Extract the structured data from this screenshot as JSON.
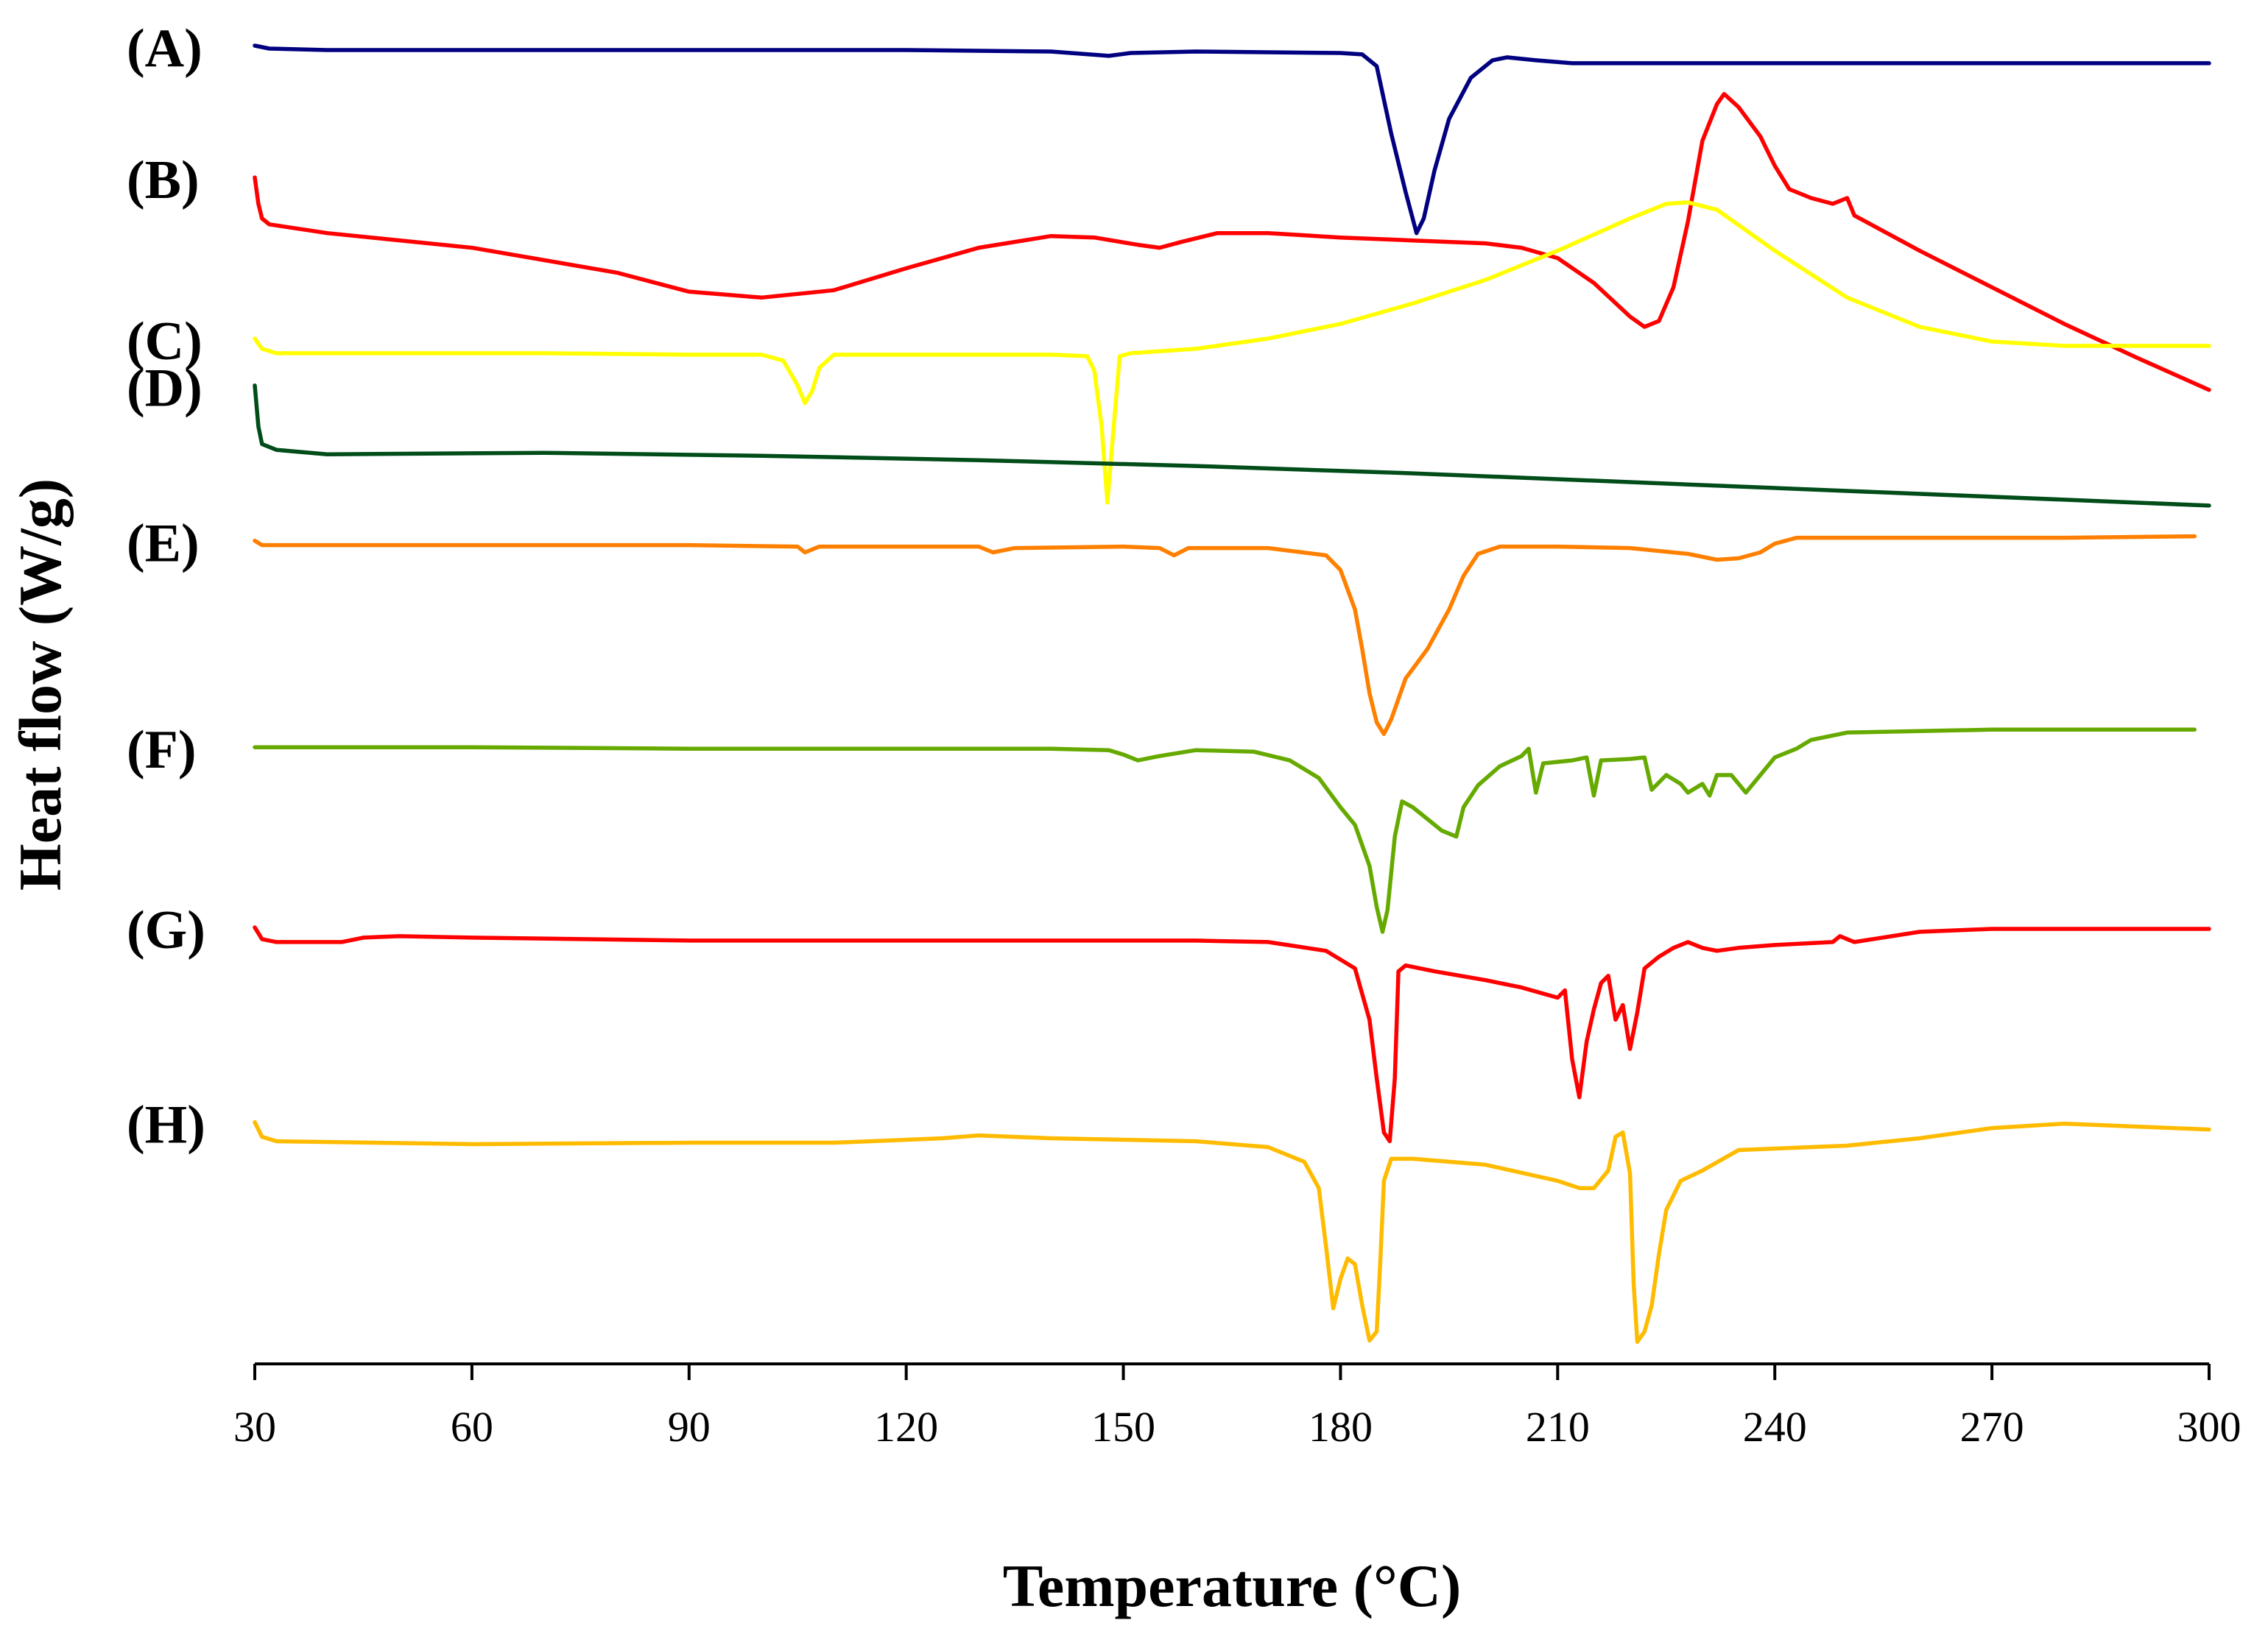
{
  "chart_data": {
    "type": "line",
    "title": "",
    "xlabel": "Temperature (°C)",
    "ylabel": "Heat flow (W/g)",
    "xlim": [
      30,
      300
    ],
    "xticks": [
      30,
      60,
      90,
      120,
      150,
      180,
      210,
      240,
      270,
      300
    ],
    "yaxis_units": "offset heat-flow units (stacked curves, 0 = top of plot, 900 = baseline)",
    "series": [
      {
        "name": "(A)",
        "color": "#000080",
        "points": [
          [
            30,
            0
          ],
          [
            32,
            2
          ],
          [
            40,
            3
          ],
          [
            60,
            3
          ],
          [
            90,
            3
          ],
          [
            120,
            3
          ],
          [
            140,
            4
          ],
          [
            148,
            7
          ],
          [
            151,
            5
          ],
          [
            160,
            4
          ],
          [
            180,
            5
          ],
          [
            183,
            6
          ],
          [
            185,
            14
          ],
          [
            187,
            60
          ],
          [
            189,
            100
          ],
          [
            190.5,
            128
          ],
          [
            191.5,
            118
          ],
          [
            193,
            85
          ],
          [
            195,
            50
          ],
          [
            198,
            22
          ],
          [
            201,
            10
          ],
          [
            203,
            8
          ],
          [
            207,
            10
          ],
          [
            212,
            12
          ],
          [
            230,
            12
          ],
          [
            260,
            12
          ],
          [
            300,
            12
          ]
        ]
      },
      {
        "name": "(B)",
        "color": "#ff0000",
        "points": [
          [
            30,
            90
          ],
          [
            30.5,
            108
          ],
          [
            31,
            118
          ],
          [
            32,
            122
          ],
          [
            40,
            128
          ],
          [
            60,
            138
          ],
          [
            80,
            155
          ],
          [
            90,
            168
          ],
          [
            100,
            172
          ],
          [
            110,
            167
          ],
          [
            120,
            152
          ],
          [
            130,
            138
          ],
          [
            140,
            130
          ],
          [
            146,
            131
          ],
          [
            152,
            136
          ],
          [
            155,
            138
          ],
          [
            158,
            134
          ],
          [
            163,
            128
          ],
          [
            170,
            128
          ],
          [
            180,
            131
          ],
          [
            190,
            133
          ],
          [
            200,
            135
          ],
          [
            205,
            138
          ],
          [
            210,
            145
          ],
          [
            215,
            162
          ],
          [
            220,
            185
          ],
          [
            222,
            192
          ],
          [
            224,
            188
          ],
          [
            226,
            165
          ],
          [
            228,
            120
          ],
          [
            230,
            65
          ],
          [
            232,
            40
          ],
          [
            233,
            33
          ],
          [
            235,
            42
          ],
          [
            238,
            62
          ],
          [
            240,
            82
          ],
          [
            242,
            98
          ],
          [
            245,
            104
          ],
          [
            248,
            108
          ],
          [
            250,
            104
          ],
          [
            251,
            116
          ],
          [
            260,
            140
          ],
          [
            270,
            165
          ],
          [
            280,
            190
          ],
          [
            290,
            213
          ],
          [
            300,
            235
          ]
        ]
      },
      {
        "name": "(C)",
        "color": "#ffff00",
        "points": [
          [
            30,
            200
          ],
          [
            31,
            207
          ],
          [
            33,
            210
          ],
          [
            50,
            210
          ],
          [
            70,
            210
          ],
          [
            90,
            211
          ],
          [
            100,
            211
          ],
          [
            103,
            215
          ],
          [
            105,
            232
          ],
          [
            106,
            244
          ],
          [
            107,
            236
          ],
          [
            108,
            220
          ],
          [
            110,
            211
          ],
          [
            120,
            211
          ],
          [
            140,
            211
          ],
          [
            145,
            212
          ],
          [
            146,
            222
          ],
          [
            147,
            260
          ],
          [
            147.8,
            312
          ],
          [
            148.5,
            270
          ],
          [
            149.5,
            212
          ],
          [
            151,
            210
          ],
          [
            160,
            207
          ],
          [
            170,
            200
          ],
          [
            180,
            190
          ],
          [
            190,
            176
          ],
          [
            200,
            160
          ],
          [
            210,
            140
          ],
          [
            220,
            118
          ],
          [
            225,
            108
          ],
          [
            228,
            107
          ],
          [
            232,
            112
          ],
          [
            240,
            140
          ],
          [
            250,
            172
          ],
          [
            260,
            192
          ],
          [
            270,
            202
          ],
          [
            280,
            205
          ],
          [
            290,
            205
          ],
          [
            300,
            205
          ]
        ]
      },
      {
        "name": "(D)",
        "color": "#004d1a",
        "points": [
          [
            30,
            232
          ],
          [
            30.5,
            260
          ],
          [
            31,
            272
          ],
          [
            33,
            276
          ],
          [
            40,
            279
          ],
          [
            70,
            278
          ],
          [
            100,
            280
          ],
          [
            130,
            283
          ],
          [
            160,
            287
          ],
          [
            190,
            292
          ],
          [
            220,
            298
          ],
          [
            250,
            304
          ],
          [
            280,
            310
          ],
          [
            300,
            314
          ]
        ]
      },
      {
        "name": "(E)",
        "color": "#ff8000",
        "points": [
          [
            30,
            338
          ],
          [
            31,
            341
          ],
          [
            60,
            341
          ],
          [
            90,
            341
          ],
          [
            105,
            342
          ],
          [
            106,
            346
          ],
          [
            108,
            342
          ],
          [
            130,
            342
          ],
          [
            132,
            346
          ],
          [
            135,
            343
          ],
          [
            150,
            342
          ],
          [
            155,
            343
          ],
          [
            157,
            348
          ],
          [
            159,
            343
          ],
          [
            170,
            343
          ],
          [
            178,
            348
          ],
          [
            180,
            358
          ],
          [
            182,
            385
          ],
          [
            183,
            412
          ],
          [
            184,
            442
          ],
          [
            185,
            462
          ],
          [
            186,
            470
          ],
          [
            187,
            460
          ],
          [
            189,
            432
          ],
          [
            192,
            412
          ],
          [
            195,
            385
          ],
          [
            197,
            362
          ],
          [
            199,
            347
          ],
          [
            202,
            342
          ],
          [
            210,
            342
          ],
          [
            220,
            343
          ],
          [
            228,
            347
          ],
          [
            232,
            351
          ],
          [
            235,
            350
          ],
          [
            238,
            346
          ],
          [
            240,
            340
          ],
          [
            243,
            336
          ],
          [
            260,
            336
          ],
          [
            280,
            336
          ],
          [
            298,
            335
          ]
        ]
      },
      {
        "name": "(F)",
        "color": "#66aa00",
        "points": [
          [
            30,
            479
          ],
          [
            60,
            479
          ],
          [
            90,
            480
          ],
          [
            120,
            480
          ],
          [
            140,
            480
          ],
          [
            148,
            481
          ],
          [
            150,
            484
          ],
          [
            152,
            488
          ],
          [
            155,
            485
          ],
          [
            160,
            481
          ],
          [
            168,
            482
          ],
          [
            173,
            488
          ],
          [
            177,
            500
          ],
          [
            180,
            520
          ],
          [
            182,
            532
          ],
          [
            184,
            560
          ],
          [
            185,
            588
          ],
          [
            185.8,
            605
          ],
          [
            186.5,
            590
          ],
          [
            187.5,
            540
          ],
          [
            188.5,
            516
          ],
          [
            190,
            520
          ],
          [
            192,
            528
          ],
          [
            194,
            536
          ],
          [
            196,
            540
          ],
          [
            197,
            520
          ],
          [
            199,
            505
          ],
          [
            202,
            492
          ],
          [
            205,
            485
          ],
          [
            206,
            480
          ],
          [
            207,
            510
          ],
          [
            208,
            490
          ],
          [
            212,
            488
          ],
          [
            214,
            486
          ],
          [
            215,
            512
          ],
          [
            216,
            488
          ],
          [
            220,
            487
          ],
          [
            222,
            486
          ],
          [
            223,
            508
          ],
          [
            225,
            498
          ],
          [
            227,
            504
          ],
          [
            228,
            510
          ],
          [
            230,
            504
          ],
          [
            231,
            512
          ],
          [
            232,
            498
          ],
          [
            234,
            498
          ],
          [
            236,
            510
          ],
          [
            238,
            498
          ],
          [
            240,
            486
          ],
          [
            243,
            480
          ],
          [
            245,
            474
          ],
          [
            250,
            469
          ],
          [
            260,
            468
          ],
          [
            270,
            467
          ],
          [
            280,
            467
          ],
          [
            298,
            467
          ]
        ]
      },
      {
        "name": "(G)",
        "color": "#ff0000",
        "points": [
          [
            30,
            602
          ],
          [
            31,
            610
          ],
          [
            33,
            612
          ],
          [
            40,
            612
          ],
          [
            42,
            612
          ],
          [
            45,
            609
          ],
          [
            50,
            608
          ],
          [
            60,
            609
          ],
          [
            90,
            611
          ],
          [
            120,
            611
          ],
          [
            150,
            611
          ],
          [
            160,
            611
          ],
          [
            170,
            612
          ],
          [
            178,
            618
          ],
          [
            182,
            630
          ],
          [
            184,
            665
          ],
          [
            185,
            705
          ],
          [
            186,
            742
          ],
          [
            186.8,
            748
          ],
          [
            187.5,
            705
          ],
          [
            188,
            632
          ],
          [
            189,
            628
          ],
          [
            193,
            632
          ],
          [
            200,
            638
          ],
          [
            205,
            643
          ],
          [
            210,
            650
          ],
          [
            211,
            645
          ],
          [
            212,
            692
          ],
          [
            213,
            718
          ],
          [
            214,
            680
          ],
          [
            215,
            658
          ],
          [
            216,
            640
          ],
          [
            217,
            635
          ],
          [
            218,
            665
          ],
          [
            219,
            655
          ],
          [
            220,
            685
          ],
          [
            221,
            660
          ],
          [
            222,
            630
          ],
          [
            224,
            622
          ],
          [
            226,
            616
          ],
          [
            228,
            612
          ],
          [
            230,
            616
          ],
          [
            232,
            618
          ],
          [
            235,
            616
          ],
          [
            240,
            614
          ],
          [
            248,
            612
          ],
          [
            249,
            608
          ],
          [
            251,
            612
          ],
          [
            260,
            605
          ],
          [
            270,
            603
          ],
          [
            280,
            603
          ],
          [
            300,
            603
          ]
        ]
      },
      {
        "name": "(H)",
        "color": "#ffbb00",
        "points": [
          [
            30,
            735
          ],
          [
            31,
            745
          ],
          [
            33,
            748
          ],
          [
            60,
            750
          ],
          [
            90,
            749
          ],
          [
            110,
            749
          ],
          [
            125,
            746
          ],
          [
            130,
            744
          ],
          [
            140,
            746
          ],
          [
            150,
            747
          ],
          [
            160,
            748
          ],
          [
            170,
            752
          ],
          [
            175,
            762
          ],
          [
            177,
            780
          ],
          [
            178,
            820
          ],
          [
            179,
            862
          ],
          [
            180,
            842
          ],
          [
            181,
            828
          ],
          [
            182,
            832
          ],
          [
            183,
            860
          ],
          [
            184,
            884
          ],
          [
            185,
            878
          ],
          [
            185.5,
            830
          ],
          [
            186,
            775
          ],
          [
            187,
            760
          ],
          [
            190,
            760
          ],
          [
            200,
            764
          ],
          [
            210,
            775
          ],
          [
            213,
            780
          ],
          [
            215,
            780
          ],
          [
            217,
            768
          ],
          [
            218,
            745
          ],
          [
            219,
            742
          ],
          [
            220,
            770
          ],
          [
            220.5,
            845
          ],
          [
            221,
            885
          ],
          [
            222,
            878
          ],
          [
            223,
            860
          ],
          [
            224,
            825
          ],
          [
            225,
            795
          ],
          [
            227,
            775
          ],
          [
            230,
            768
          ],
          [
            235,
            754
          ],
          [
            240,
            753
          ],
          [
            250,
            751
          ],
          [
            260,
            746
          ],
          [
            270,
            739
          ],
          [
            280,
            736
          ],
          [
            290,
            738
          ],
          [
            300,
            740
          ]
        ]
      }
    ]
  }
}
